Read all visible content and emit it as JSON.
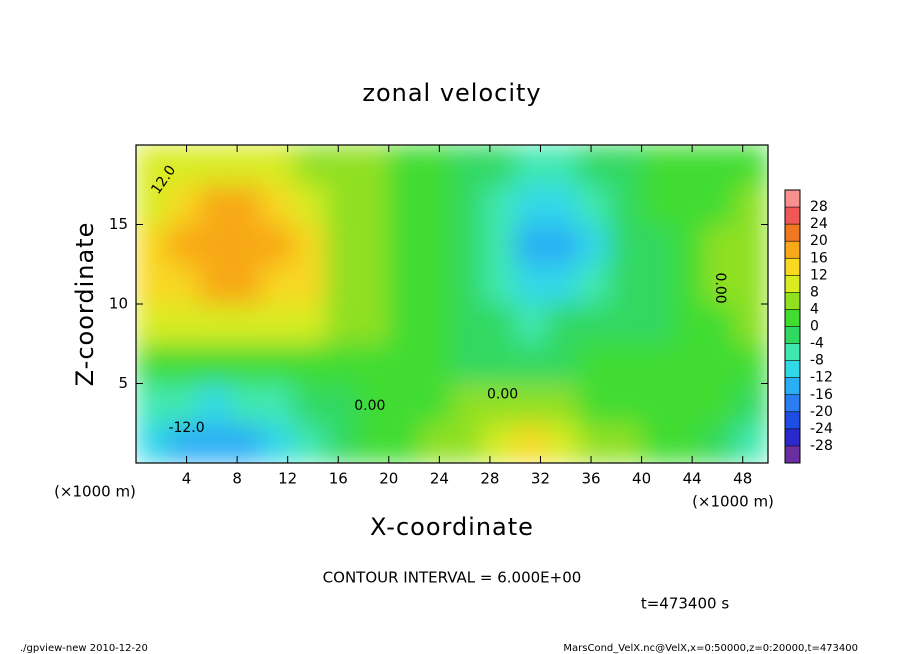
{
  "chart_data": {
    "type": "contour",
    "title": "zonal velocity",
    "x_label": "X-coordinate",
    "y_label": "Z-coordinate",
    "x_unit_left": "(×1000 m)",
    "x_unit_right": "(×1000 m)",
    "contour_interval": "CONTOUR INTERVAL = 6.000E+00",
    "time_label": "t=473400 s",
    "footer_left": "./gpview-new  2010-12-20",
    "footer_right": "MarsCond_VelX.nc@VelX,x=0:50000,z=0:20000,t=473400",
    "contour_labels": [
      "12.0",
      "0.00",
      "0.00",
      "0.00",
      "-12.0"
    ],
    "xlim": [
      0,
      50
    ],
    "xticks": [
      4,
      8,
      12,
      16,
      20,
      24,
      28,
      32,
      36,
      40,
      44,
      48
    ],
    "ylim": [
      0,
      20
    ],
    "yticks": [
      5,
      10,
      15
    ],
    "x": [
      1.25,
      3.75,
      6.25,
      8.75,
      11.25,
      13.75,
      16.25,
      18.75,
      21.25,
      23.75,
      26.25,
      28.75,
      31.25,
      33.75,
      36.25,
      38.75,
      41.25,
      43.75,
      46.25,
      48.75
    ],
    "z": [
      1.25,
      3.75,
      6.25,
      8.75,
      11.25,
      13.75,
      16.25,
      18.75
    ],
    "values": [
      [
        -10,
        -13,
        -14,
        -13,
        -12,
        -8,
        -3,
        0,
        2,
        4,
        6,
        8,
        12,
        8,
        6,
        4,
        2,
        0,
        -2,
        -8
      ],
      [
        -6,
        -8,
        -9,
        -8,
        -7,
        -4,
        -1,
        1,
        0,
        2,
        4,
        5,
        5,
        4,
        3,
        3,
        2,
        1,
        0,
        -2
      ],
      [
        3,
        2,
        2,
        2,
        2,
        2,
        1,
        1,
        0,
        0,
        -1,
        -2,
        -2,
        -1,
        0,
        0,
        1,
        2,
        2,
        2
      ],
      [
        8,
        10,
        11,
        11,
        10,
        8,
        6,
        4,
        1,
        0,
        -2,
        -4,
        -5,
        -4,
        -3,
        -1,
        -1,
        1,
        3,
        4
      ],
      [
        13,
        15,
        16,
        16,
        15,
        12,
        7,
        5,
        2,
        0,
        -3,
        -7,
        -10,
        -9,
        -7,
        -3,
        -1,
        1,
        4,
        6
      ],
      [
        12,
        16,
        18,
        18,
        17,
        13,
        7,
        5,
        2,
        0,
        -3,
        -8,
        -13,
        -14,
        -9,
        -4,
        -1,
        1,
        5,
        6
      ],
      [
        10,
        14,
        16,
        16,
        15,
        11,
        6,
        5,
        2,
        0,
        -2,
        -7,
        -11,
        -11,
        -8,
        -3,
        0,
        1,
        3,
        4
      ],
      [
        8,
        10,
        11,
        11,
        9,
        7,
        5,
        4,
        2,
        0,
        -1,
        -3,
        -5,
        -5,
        -3,
        -1,
        1,
        1,
        2,
        3
      ]
    ],
    "colorbar": {
      "lim": [
        -32,
        32
      ],
      "ticks": [
        -28,
        -24,
        -20,
        -16,
        -12,
        -8,
        -4,
        0,
        4,
        8,
        12,
        16,
        20,
        24,
        28
      ],
      "colors": [
        "#6a2ea0",
        "#2a2acc",
        "#1f4ee6",
        "#2a7ef2",
        "#2aaef5",
        "#30d8e8",
        "#40e8b0",
        "#30d860",
        "#40dc30",
        "#90e020",
        "#d8ec20",
        "#f8d820",
        "#f8a818",
        "#f07820",
        "#f05858",
        "#f89090"
      ]
    }
  }
}
